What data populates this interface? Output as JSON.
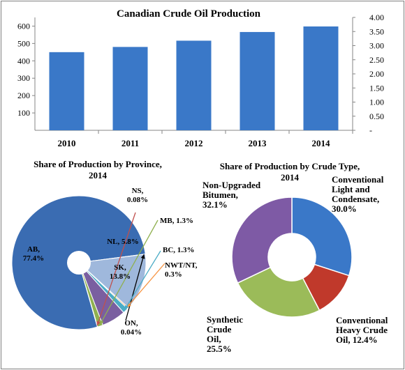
{
  "chart_data": [
    {
      "type": "bar",
      "title": "Canadian Crude Oil Production",
      "categories": [
        "2010",
        "2011",
        "2012",
        "2013",
        "2014"
      ],
      "values": [
        450,
        480,
        516,
        566,
        598
      ],
      "ylim": [
        0,
        650
      ],
      "yticks": [
        100,
        200,
        300,
        400,
        500,
        600
      ],
      "y2ticks": [
        "-",
        "0.50",
        "1.00",
        "1.50",
        "2.00",
        "2.50",
        "3.00",
        "3.50",
        "4.00"
      ],
      "grid": false,
      "color": "#3a78c8"
    },
    {
      "type": "pie",
      "title": "Share of Production by Province, 2014",
      "slices": [
        {
          "label": "AB,\n77.4%",
          "value": 77.4,
          "color": "#3a6cb2"
        },
        {
          "label": "ON,\n0.04%",
          "value": 0.04,
          "color": "#3a6cb2"
        },
        {
          "label": "SK,\n13.8%",
          "value": 13.8,
          "color": "#9fb8dc"
        },
        {
          "label": "NWT/NT,\n0.3%",
          "value": 0.3,
          "color": "#f79646"
        },
        {
          "label": "BC, 1.3%",
          "value": 1.3,
          "color": "#4bacc6"
        },
        {
          "label": "NL, 5.8%",
          "value": 5.8,
          "color": "#7a5fa0"
        },
        {
          "label": "MB, 1.3%",
          "value": 1.3,
          "color": "#8fb04f"
        },
        {
          "label": "NS,\n0.08%",
          "value": 0.08,
          "color": "#c0504d"
        }
      ]
    },
    {
      "type": "pie",
      "title": "Share of Production by Crude Type, 2014",
      "donut": true,
      "slices": [
        {
          "label": "Conventional\nLight and\nCondensate,\n30.0%",
          "value": 30.0,
          "color": "#3a78c8"
        },
        {
          "label": "Conventional\nHeavy Crude\nOil, 12.4%",
          "value": 12.4,
          "color": "#c0392b"
        },
        {
          "label": "Synthetic\nCrude\nOil,\n25.5%",
          "value": 25.5,
          "color": "#9bbb59"
        },
        {
          "label": "Non-Upgraded\nBitumen,\n32.1%",
          "value": 32.1,
          "color": "#7e5aa5"
        }
      ]
    }
  ]
}
